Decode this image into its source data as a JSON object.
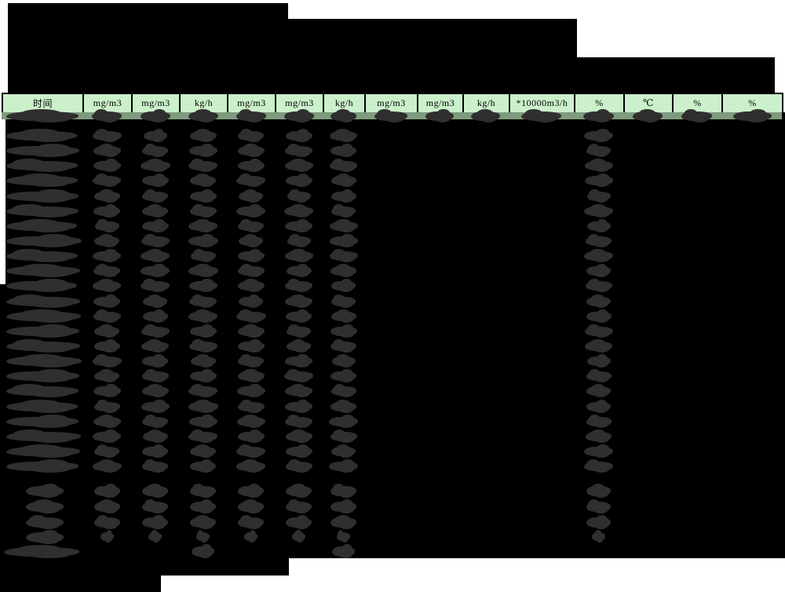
{
  "document": {
    "type": "redacted-monitoring-report-table",
    "title_redacted": true
  },
  "colors": {
    "page_bg": "#ffffff",
    "redaction_block": "#000000",
    "redaction_text": "#2f2f2f",
    "header_bg": "#cbf0cb",
    "subheader_bg": "#7e9b7e",
    "cell_border": "#000000",
    "header_text": "#000000"
  },
  "header": {
    "columns": [
      "时间",
      "mg/m3",
      "mg/m3",
      "kg/h",
      "mg/m3",
      "mg/m3",
      "kg/h",
      "mg/m3",
      "mg/m3",
      "kg/h",
      "*10000m3/h",
      "%",
      "℃",
      "%",
      "%"
    ],
    "subheader_row_redacted": true,
    "subheader_redacted_columns": [
      0,
      1,
      2,
      3,
      4,
      5,
      6,
      7,
      8,
      9,
      10,
      11,
      12,
      13,
      14
    ]
  },
  "table": {
    "data_row_count": 23,
    "rows_redacted": true,
    "redacted_value_columns": [
      0,
      1,
      2,
      3,
      4,
      5,
      6,
      11
    ],
    "empty_columns": [
      7,
      8,
      9,
      10,
      12,
      13,
      14
    ]
  },
  "summary": {
    "rows": [
      {
        "label_redacted": true,
        "size": "normal",
        "value_columns": [
          1,
          2,
          3,
          4,
          5,
          6,
          11
        ]
      },
      {
        "label_redacted": true,
        "size": "normal",
        "value_columns": [
          1,
          2,
          3,
          4,
          5,
          6,
          11
        ]
      },
      {
        "label_redacted": true,
        "size": "normal",
        "value_columns": [
          1,
          2,
          3,
          4,
          5,
          6,
          11
        ]
      },
      {
        "label_redacted": true,
        "size": "small",
        "value_columns": [
          1,
          2,
          3,
          4,
          5,
          6,
          11
        ]
      },
      {
        "label_redacted": true,
        "size": "wide-label",
        "value_columns": [
          3,
          6
        ]
      }
    ]
  }
}
